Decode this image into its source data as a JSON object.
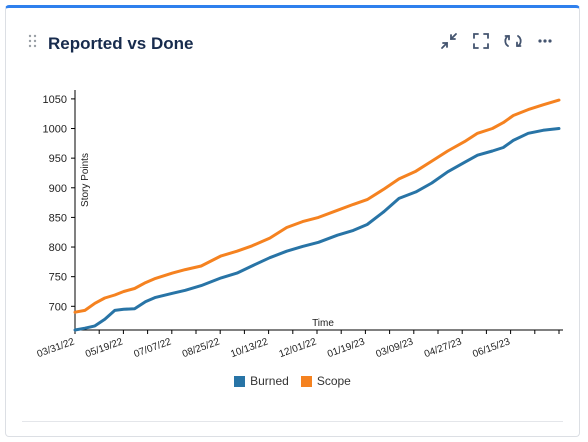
{
  "widget": {
    "title": "Reported vs Done",
    "icons": [
      "drag-handle-icon",
      "collapse-icon",
      "fullscreen-icon",
      "refresh-icon",
      "more-icon"
    ]
  },
  "colors": {
    "accent_border": "#2f80ed",
    "burned": "#2874a6",
    "scope": "#f58220"
  },
  "chart_data": {
    "type": "line",
    "xlabel": "Time",
    "ylabel": "Story Points",
    "x_ticks": [
      "03/31/22",
      "05/19/22",
      "07/07/22",
      "08/25/22",
      "10/13/22",
      "12/01/22",
      "01/19/23",
      "03/09/23",
      "04/27/23",
      "06/15/23"
    ],
    "y_ticks": [
      700,
      750,
      800,
      850,
      900,
      950,
      1000,
      1050
    ],
    "ylim": [
      660,
      1065
    ],
    "x_range": [
      "2022-03-31",
      "2023-07-31"
    ],
    "grid": false,
    "legend": "bottom",
    "series": [
      {
        "name": "Burned",
        "color": "#2874a6",
        "points": [
          [
            "2022-03-31",
            660
          ],
          [
            "2022-04-10",
            663
          ],
          [
            "2022-04-20",
            667
          ],
          [
            "2022-04-30",
            678
          ],
          [
            "2022-05-10",
            693
          ],
          [
            "2022-05-19",
            695
          ],
          [
            "2022-05-30",
            696
          ],
          [
            "2022-06-10",
            708
          ],
          [
            "2022-06-20",
            715
          ],
          [
            "2022-07-07",
            722
          ],
          [
            "2022-07-20",
            727
          ],
          [
            "2022-08-05",
            735
          ],
          [
            "2022-08-25",
            748
          ],
          [
            "2022-09-10",
            756
          ],
          [
            "2022-09-25",
            768
          ],
          [
            "2022-10-13",
            782
          ],
          [
            "2022-10-30",
            793
          ],
          [
            "2022-11-15",
            801
          ],
          [
            "2022-12-01",
            808
          ],
          [
            "2022-12-20",
            820
          ],
          [
            "2023-01-05",
            828
          ],
          [
            "2023-01-19",
            838
          ],
          [
            "2023-02-05",
            860
          ],
          [
            "2023-02-20",
            882
          ],
          [
            "2023-03-09",
            893
          ],
          [
            "2023-03-25",
            908
          ],
          [
            "2023-04-10",
            927
          ],
          [
            "2023-04-27",
            943
          ],
          [
            "2023-05-10",
            955
          ],
          [
            "2023-05-25",
            962
          ],
          [
            "2023-06-05",
            968
          ],
          [
            "2023-06-15",
            980
          ],
          [
            "2023-06-30",
            992
          ],
          [
            "2023-07-15",
            997
          ],
          [
            "2023-07-31",
            1000
          ]
        ]
      },
      {
        "name": "Scope",
        "color": "#f58220",
        "points": [
          [
            "2022-03-31",
            690
          ],
          [
            "2022-04-10",
            693
          ],
          [
            "2022-04-20",
            705
          ],
          [
            "2022-04-30",
            714
          ],
          [
            "2022-05-10",
            719
          ],
          [
            "2022-05-19",
            725
          ],
          [
            "2022-05-30",
            730
          ],
          [
            "2022-06-10",
            740
          ],
          [
            "2022-06-20",
            747
          ],
          [
            "2022-07-07",
            756
          ],
          [
            "2022-07-20",
            762
          ],
          [
            "2022-08-05",
            768
          ],
          [
            "2022-08-25",
            785
          ],
          [
            "2022-09-10",
            793
          ],
          [
            "2022-09-25",
            802
          ],
          [
            "2022-10-13",
            815
          ],
          [
            "2022-10-30",
            833
          ],
          [
            "2022-11-15",
            843
          ],
          [
            "2022-12-01",
            850
          ],
          [
            "2022-12-20",
            862
          ],
          [
            "2023-01-05",
            872
          ],
          [
            "2023-01-19",
            880
          ],
          [
            "2023-02-05",
            898
          ],
          [
            "2023-02-20",
            915
          ],
          [
            "2023-03-09",
            928
          ],
          [
            "2023-03-25",
            945
          ],
          [
            "2023-04-10",
            962
          ],
          [
            "2023-04-27",
            978
          ],
          [
            "2023-05-10",
            992
          ],
          [
            "2023-05-25",
            1000
          ],
          [
            "2023-06-05",
            1010
          ],
          [
            "2023-06-15",
            1022
          ],
          [
            "2023-06-30",
            1032
          ],
          [
            "2023-07-15",
            1040
          ],
          [
            "2023-07-31",
            1048
          ]
        ]
      }
    ]
  }
}
